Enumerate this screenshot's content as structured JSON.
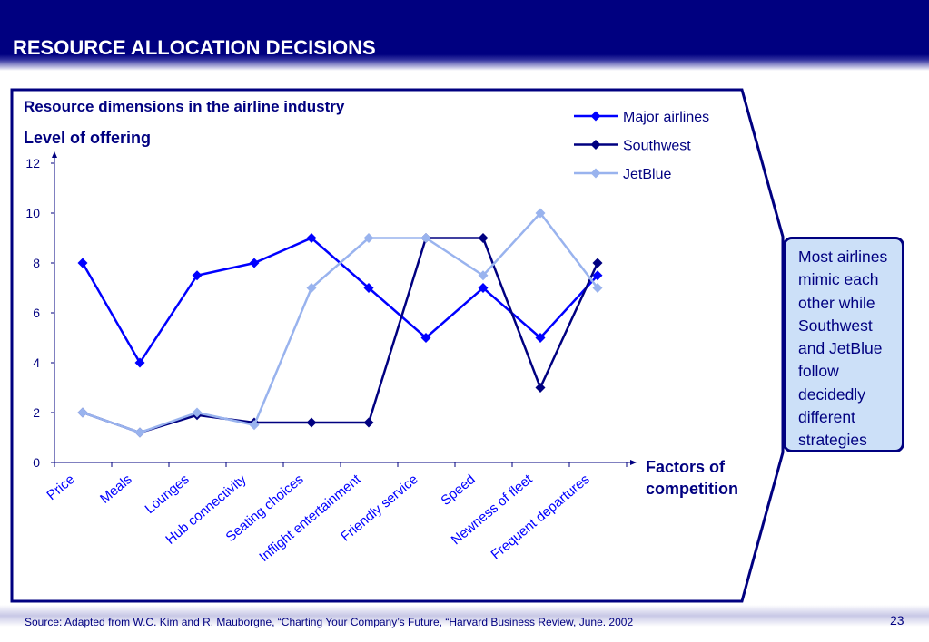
{
  "slide": {
    "title": "RESOURCE ALLOCATION DECISIONS",
    "page_number": "23",
    "source": "Source:  Adapted from W.C. Kim and R. Mauborgne, “Charting Your Company’s Future, “Harvard Business Review, June. 2002"
  },
  "callout": {
    "text": "Most airlines mimic each other while Southwest and JetBlue follow decidedly different strategies",
    "lines": [
      "Most airlines",
      "mimic each",
      "other while",
      "Southwest",
      "and JetBlue",
      "follow",
      "decidedly",
      "different",
      "strategies"
    ]
  },
  "colors": {
    "header_bg": "#000080",
    "text": "#000080",
    "callout_bg": "#cce0f8"
  },
  "chart_data": {
    "type": "line",
    "title": "Resource dimensions in the airline industry",
    "ylabel": "Level of offering",
    "xlabel": "Factors of competition",
    "ylim": [
      0,
      12
    ],
    "yticks": [
      0,
      2,
      4,
      6,
      8,
      10,
      12
    ],
    "grid": false,
    "legend_position": "top-right",
    "categories": [
      "Price",
      "Meals",
      "Lounges",
      "Hub connectivity",
      "Seating choices",
      "Inflight entertainment",
      "Friendly service",
      "Speed",
      "Newness of fleet",
      "Frequent departures"
    ],
    "series": [
      {
        "name": "Major airlines",
        "color": "#0000ff",
        "marker": "diamond",
        "values": [
          8,
          4,
          7.5,
          8,
          9,
          7,
          5,
          7,
          5,
          7.5
        ]
      },
      {
        "name": "Southwest",
        "color": "#000080",
        "marker": "diamond",
        "values": [
          2,
          1.2,
          1.9,
          1.6,
          1.6,
          1.6,
          9,
          9,
          3,
          8
        ]
      },
      {
        "name": "JetBlue",
        "color": "#99b3ee",
        "marker": "diamond",
        "values": [
          2,
          1.2,
          2,
          1.5,
          7,
          9,
          9,
          7.5,
          10,
          7
        ]
      }
    ]
  }
}
